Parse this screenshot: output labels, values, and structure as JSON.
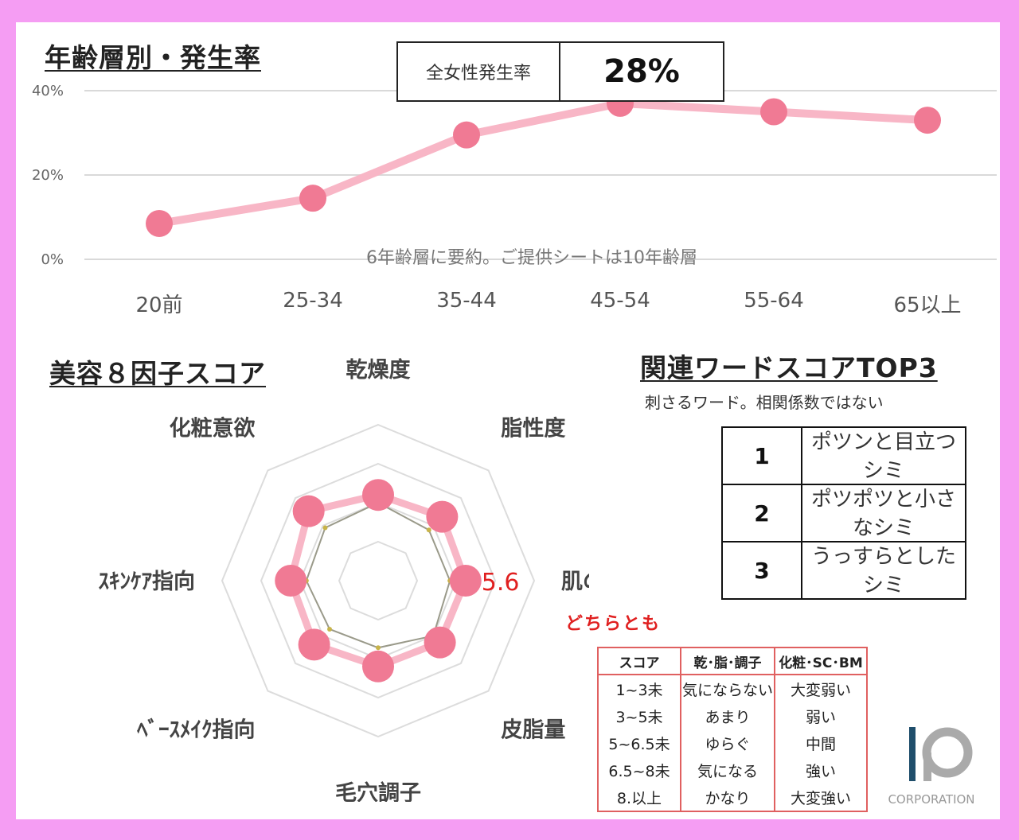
{
  "line_section": {
    "title": "年齢層別・発生率",
    "summary_label": "全女性発生率",
    "summary_value": "28%",
    "note": "6年齢層に要約。ご提供シートは10年齢層"
  },
  "radar_section": {
    "title": "美容８因子スコア",
    "value_label": "5.6"
  },
  "words_section": {
    "title": "関連ワードスコアTOP3",
    "subtitle": "刺さるワード。相関係数ではない",
    "rows": [
      {
        "rank": "1",
        "word": "ポツンと目立つシミ"
      },
      {
        "rank": "2",
        "word": "ポツポツと小さなシミ"
      },
      {
        "rank": "3",
        "word": "うっすらとしたシミ"
      }
    ]
  },
  "scale_section": {
    "note": "どちらとも",
    "headers": [
      "スコア",
      "乾･脂･調子",
      "化粧･SC･BM"
    ],
    "rows": [
      [
        "1~3未",
        "気にならない",
        "大変弱い"
      ],
      [
        "3~5未",
        "あまり",
        "弱い"
      ],
      [
        "5~6.5未",
        "ゆらぐ",
        "中間"
      ],
      [
        "6.5~8未",
        "気になる",
        "強い"
      ],
      [
        "8.以上",
        "かなり",
        "大変強い"
      ]
    ]
  },
  "logo": {
    "text": "CORPORATION",
    "color": "#1f4e6b"
  },
  "colors": {
    "series": "#f07a94",
    "line": "#f8b6c6",
    "frame": "#f59df3",
    "scale_border": "#e06060"
  },
  "chart_data": [
    {
      "type": "line",
      "categories": [
        "20前",
        "25-34",
        "35-44",
        "45-54",
        "55-64",
        "65以上"
      ],
      "values": [
        0.085,
        0.145,
        0.295,
        0.37,
        0.35,
        0.33
      ],
      "ylim": [
        0,
        0.4
      ],
      "yticks": [
        "0%",
        "20%",
        "40%"
      ],
      "grid": true
    },
    {
      "type": "radar",
      "axes": [
        "乾燥度",
        "脂性度",
        "肌の調子",
        "皮脂量",
        "毛穴調子",
        "ﾍﾞｰｽﾒｲｸ指向",
        "ｽｷﾝｹｱ指向",
        "化粧意欲"
      ],
      "rlim": [
        0,
        10
      ],
      "series": [
        {
          "values": [
            5.5,
            5.8,
            5.6,
            5.6,
            5.5,
            5.8,
            5.6,
            6.3
          ]
        },
        {
          "values": [
            5.0,
            4.6,
            4.6,
            5.0,
            4.3,
            4.4,
            4.6,
            4.8
          ]
        }
      ]
    }
  ]
}
